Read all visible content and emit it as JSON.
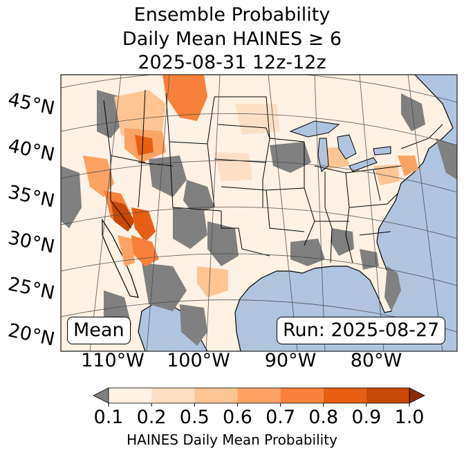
{
  "title": {
    "line1": "Ensemble Probability",
    "line2": "Daily Mean HAINES ≥ 6",
    "line3": "2025-08-31 12z-12z"
  },
  "lat_labels": [
    "45°N",
    "40°N",
    "35°N",
    "30°N",
    "25°N",
    "20°N"
  ],
  "lon_labels": [
    "110°W",
    "100°W",
    "90°W",
    "80°W"
  ],
  "mean_label": "Mean",
  "run_label": "Run: 2025-08-27",
  "colorbar": {
    "ticks": [
      "0.1",
      "0.2",
      "0.5",
      "0.6",
      "0.7",
      "0.8",
      "0.9",
      "1.0"
    ],
    "label": "HAINES Daily Mean Probability",
    "colors": [
      "#fff1e4",
      "#fde0c4",
      "#fdc594",
      "#fca363",
      "#f7813a",
      "#e65f12",
      "#c84805"
    ],
    "under_color": "#7f7f7f",
    "over_color": "#8a2a02"
  },
  "colors": {
    "ocean": "#b0c4de",
    "missing_gray": "#808080",
    "land": "#ffffff"
  }
}
